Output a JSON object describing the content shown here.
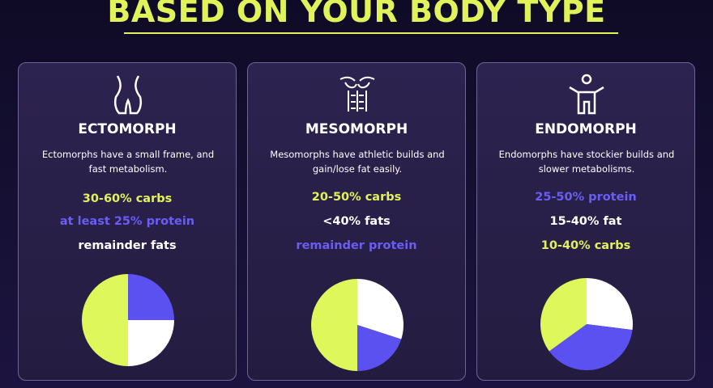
{
  "header": {
    "title": "BASED ON YOUR BODY TYPE"
  },
  "cards": [
    {
      "title": "ECTOMORPH",
      "description": "Ectomorphs have  a small frame, and fast metabolism.",
      "lines": [
        {
          "text": "30-60% carbs",
          "color": "#e2f25c"
        },
        {
          "text": "at least 25% protein",
          "color": "#6a5df5"
        },
        {
          "text": "remainder fats",
          "color": "#ffffff"
        }
      ],
      "pie": {
        "type": "pie",
        "slices": [
          {
            "value": 25,
            "color": "#5b50f0"
          },
          {
            "value": 25,
            "color": "#ffffff"
          },
          {
            "value": 50,
            "color": "#def75a"
          }
        ]
      }
    },
    {
      "title": "MESOMORPH",
      "description": "Mesomorphs have athletic builds and gain/lose fat easily.",
      "lines": [
        {
          "text": "20-50% carbs",
          "color": "#e2f25c"
        },
        {
          "text": "<40% fats",
          "color": "#ffffff"
        },
        {
          "text": "remainder protein",
          "color": "#6a5df5"
        }
      ],
      "pie": {
        "type": "pie",
        "slices": [
          {
            "value": 30,
            "color": "#ffffff"
          },
          {
            "value": 20,
            "color": "#5b50f0"
          },
          {
            "value": 50,
            "color": "#def75a"
          }
        ]
      }
    },
    {
      "title": "ENDOMORPH",
      "description": "Endomorphs have stockier builds and slower metabolisms.",
      "lines": [
        {
          "text": "25-50% protein",
          "color": "#6a5df5"
        },
        {
          "text": "15-40% fat",
          "color": "#ffffff"
        },
        {
          "text": "10-40% carbs",
          "color": "#e2f25c"
        }
      ],
      "pie": {
        "type": "pie",
        "slices": [
          {
            "value": 27,
            "color": "#ffffff"
          },
          {
            "value": 38,
            "color": "#5b50f0"
          },
          {
            "value": 35,
            "color": "#def75a"
          }
        ]
      }
    }
  ]
}
